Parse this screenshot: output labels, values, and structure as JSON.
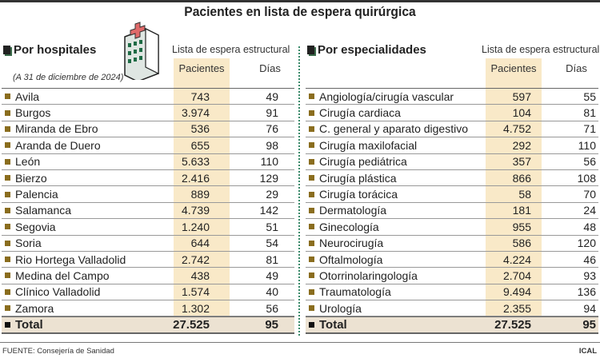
{
  "title": "Pacientes en lista de espera quirúrgica",
  "hospitales": {
    "heading": "Por hospitales",
    "subtitle": "(A 31 de diciembre de 2024)",
    "group_header": "Lista de espera estructural",
    "col_pacientes": "Pacientes",
    "col_dias": "Días",
    "rows": [
      {
        "name": "Avila",
        "pacientes": "743",
        "dias": "49"
      },
      {
        "name": "Burgos",
        "pacientes": "3.974",
        "dias": "91"
      },
      {
        "name": "Miranda de Ebro",
        "pacientes": "536",
        "dias": "76"
      },
      {
        "name": "Aranda de Duero",
        "pacientes": "655",
        "dias": "98"
      },
      {
        "name": "León",
        "pacientes": "5.633",
        "dias": "110"
      },
      {
        "name": "Bierzo",
        "pacientes": "2.416",
        "dias": "129"
      },
      {
        "name": "Palencia",
        "pacientes": "889",
        "dias": "29"
      },
      {
        "name": "Salamanca",
        "pacientes": "4.739",
        "dias": "142"
      },
      {
        "name": "Segovia",
        "pacientes": "1.240",
        "dias": "51"
      },
      {
        "name": "Soria",
        "pacientes": "644",
        "dias": "54"
      },
      {
        "name": "Rio Hortega Valladolid",
        "pacientes": "2.742",
        "dias": "81"
      },
      {
        "name": "Medina del Campo",
        "pacientes": "438",
        "dias": "49"
      },
      {
        "name": "Clínico Valladolid",
        "pacientes": "1.574",
        "dias": "40"
      },
      {
        "name": "Zamora",
        "pacientes": "1.302",
        "dias": "56"
      }
    ],
    "total": {
      "name": "Total",
      "pacientes": "27.525",
      "dias": "95"
    }
  },
  "especialidades": {
    "heading": "Por especialidades",
    "group_header": "Lista de espera estructural",
    "col_pacientes": "Pacientes",
    "col_dias": "Días",
    "rows": [
      {
        "name": "Angiología/cirugía vascular",
        "pacientes": "597",
        "dias": "55"
      },
      {
        "name": "Cirugía cardiaca",
        "pacientes": "104",
        "dias": "81"
      },
      {
        "name": "C. general y aparato digestivo",
        "pacientes": "4.752",
        "dias": "71"
      },
      {
        "name": "Cirugía maxilofacial",
        "pacientes": "292",
        "dias": "110"
      },
      {
        "name": "Cirugía pediátrica",
        "pacientes": "357",
        "dias": "56"
      },
      {
        "name": "Cirugía plástica",
        "pacientes": "866",
        "dias": "108"
      },
      {
        "name": "Cirugía torácica",
        "pacientes": "58",
        "dias": "70"
      },
      {
        "name": "Dermatología",
        "pacientes": "181",
        "dias": "24"
      },
      {
        "name": "Ginecología",
        "pacientes": "955",
        "dias": "48"
      },
      {
        "name": "Neurocirugía",
        "pacientes": "586",
        "dias": "120"
      },
      {
        "name": "Oftalmología",
        "pacientes": "4.224",
        "dias": "46"
      },
      {
        "name": "Otorrinolaringología",
        "pacientes": "2.704",
        "dias": "93"
      },
      {
        "name": "Traumatología",
        "pacientes": "9.494",
        "dias": "136"
      },
      {
        "name": "Urología",
        "pacientes": "2.355",
        "dias": "94"
      }
    ],
    "total": {
      "name": "Total",
      "pacientes": "27.525",
      "dias": "95"
    }
  },
  "source": "FUENTE: Consejería de Sanidad",
  "credit": "ICAL",
  "colors": {
    "highlight": "#f9e9c8",
    "bullet": "#8a6d1e",
    "total_bg": "#ece2d2",
    "divider": "#3a8a6a"
  },
  "chart_data": {
    "type": "table",
    "title": "Pacientes en lista de espera quirúrgica",
    "columns": [
      "Pacientes",
      "Días"
    ]
  }
}
